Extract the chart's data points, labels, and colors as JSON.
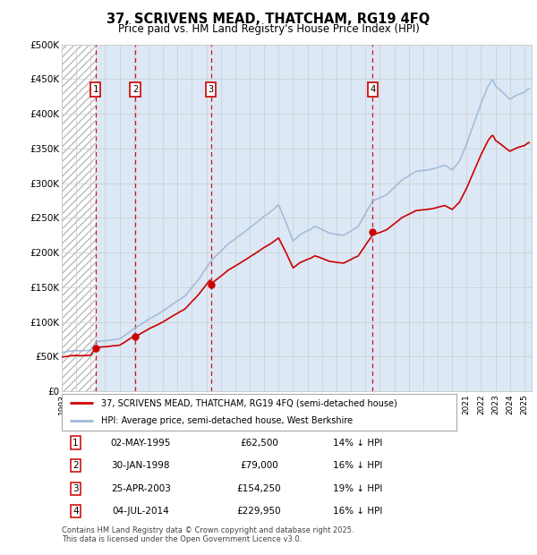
{
  "title": "37, SCRIVENS MEAD, THATCHAM, RG19 4FQ",
  "subtitle": "Price paid vs. HM Land Registry's House Price Index (HPI)",
  "ylabel_ticks": [
    "£0",
    "£50K",
    "£100K",
    "£150K",
    "£200K",
    "£250K",
    "£300K",
    "£350K",
    "£400K",
    "£450K",
    "£500K"
  ],
  "ytick_values": [
    0,
    50000,
    100000,
    150000,
    200000,
    250000,
    300000,
    350000,
    400000,
    450000,
    500000
  ],
  "xmin": 1993.0,
  "xmax": 2025.5,
  "ymin": 0,
  "ymax": 500000,
  "hpi_color": "#a0b8d8",
  "price_color": "#cc0000",
  "dashed_line_color": "#cc0000",
  "plot_bg_color": "#dce8f5",
  "hatch_bg_color": "#e8e8e8",
  "transactions": [
    {
      "num": 1,
      "date": "02-MAY-1995",
      "x": 1995.33,
      "price": 62500,
      "label": "£62,500",
      "pct": "14% ↓ HPI"
    },
    {
      "num": 2,
      "date": "30-JAN-1998",
      "x": 1998.08,
      "price": 79000,
      "label": "£79,000",
      "pct": "16% ↓ HPI"
    },
    {
      "num": 3,
      "date": "25-APR-2003",
      "x": 2003.32,
      "price": 154250,
      "label": "£154,250",
      "pct": "19% ↓ HPI"
    },
    {
      "num": 4,
      "date": "04-JUL-2014",
      "x": 2014.5,
      "price": 229950,
      "label": "£229,950",
      "pct": "16% ↓ HPI"
    }
  ],
  "legend_label_price": "37, SCRIVENS MEAD, THATCHAM, RG19 4FQ (semi-detached house)",
  "legend_label_hpi": "HPI: Average price, semi-detached house, West Berkshire",
  "footer_text": "Contains HM Land Registry data © Crown copyright and database right 2025.\nThis data is licensed under the Open Government Licence v3.0.",
  "xtick_years": [
    1993,
    1994,
    1995,
    1996,
    1997,
    1998,
    1999,
    2000,
    2001,
    2002,
    2003,
    2004,
    2005,
    2006,
    2007,
    2008,
    2009,
    2010,
    2011,
    2012,
    2013,
    2014,
    2015,
    2016,
    2017,
    2018,
    2019,
    2020,
    2021,
    2022,
    2023,
    2024,
    2025
  ]
}
